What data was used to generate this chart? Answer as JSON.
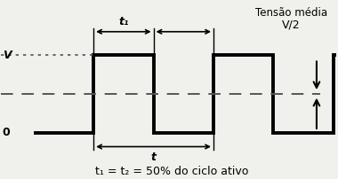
{
  "title_top": "Tensão média",
  "label_V2": "V/2",
  "label_bottom": "t₁ = t₂ = 50% do ciclo ativo",
  "label_V": "V",
  "label_0": "0",
  "label_t": "t",
  "label_t1": "t₁",
  "V_level": 1.0,
  "mid_level": 0.5,
  "zero_level": 0.0,
  "wave_color": "#000000",
  "dashed_color": "#555555",
  "bg_color": "#f0f0ec",
  "line_width": 2.8,
  "dash_linewidth": 1.4,
  "figsize": [
    3.8,
    2.02
  ],
  "dpi": 100,
  "xlim": [
    -0.55,
    5.05
  ],
  "ylim": [
    -0.52,
    1.7
  ]
}
